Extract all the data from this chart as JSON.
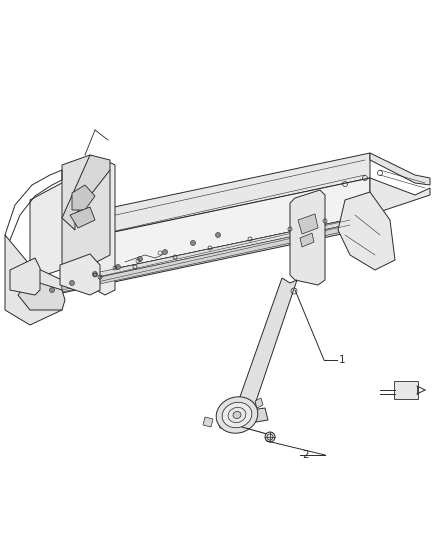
{
  "bg_color": "#ffffff",
  "fig_width": 4.38,
  "fig_height": 5.33,
  "dpi": 100,
  "line_color": "#2a2a2a",
  "light_line": "#555555",
  "label1": "1",
  "label2": "2",
  "lw_main": 0.7,
  "lw_thin": 0.4,
  "lw_thick": 1.0
}
